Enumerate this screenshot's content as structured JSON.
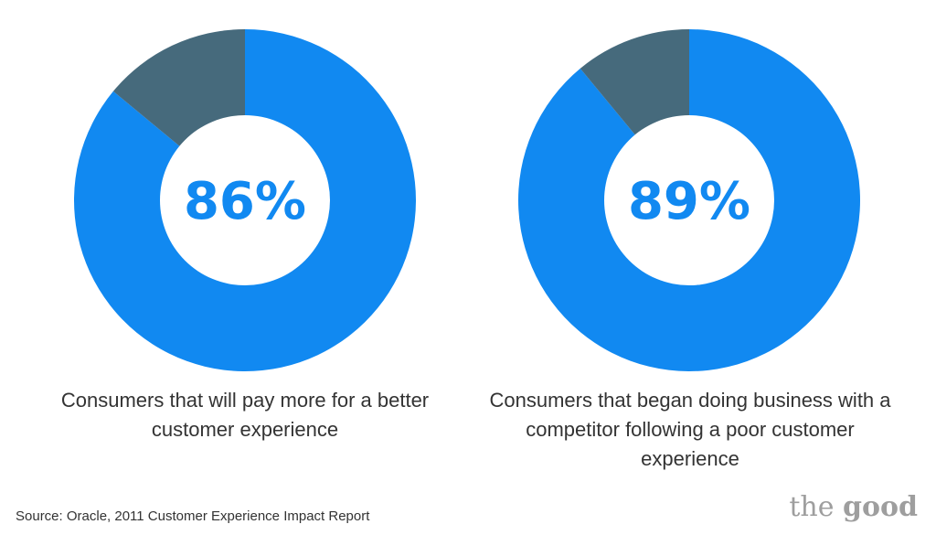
{
  "chart_data": [
    {
      "type": "pie",
      "labels": [
        "",
        ""
      ],
      "values": [
        86,
        14
      ],
      "colors": [
        "#1189F1",
        "#466A7C"
      ],
      "center_label": "86%",
      "caption": "Consumers that will pay more for a better customer experience"
    },
    {
      "type": "pie",
      "labels": [
        "",
        ""
      ],
      "values": [
        89,
        11
      ],
      "colors": [
        "#1189F1",
        "#466A7C"
      ],
      "center_label": "89%",
      "caption": "Consumers that began doing business with a competitor following a poor customer experience"
    }
  ],
  "source": "Source: Oracle, 2011 Customer Experience Impact Report",
  "logo": {
    "the": "the",
    "good": "good"
  },
  "colors": {
    "accent": "#1189F1",
    "secondary": "#466A7C",
    "text": "#333333",
    "logo": "#9e9e9e"
  }
}
